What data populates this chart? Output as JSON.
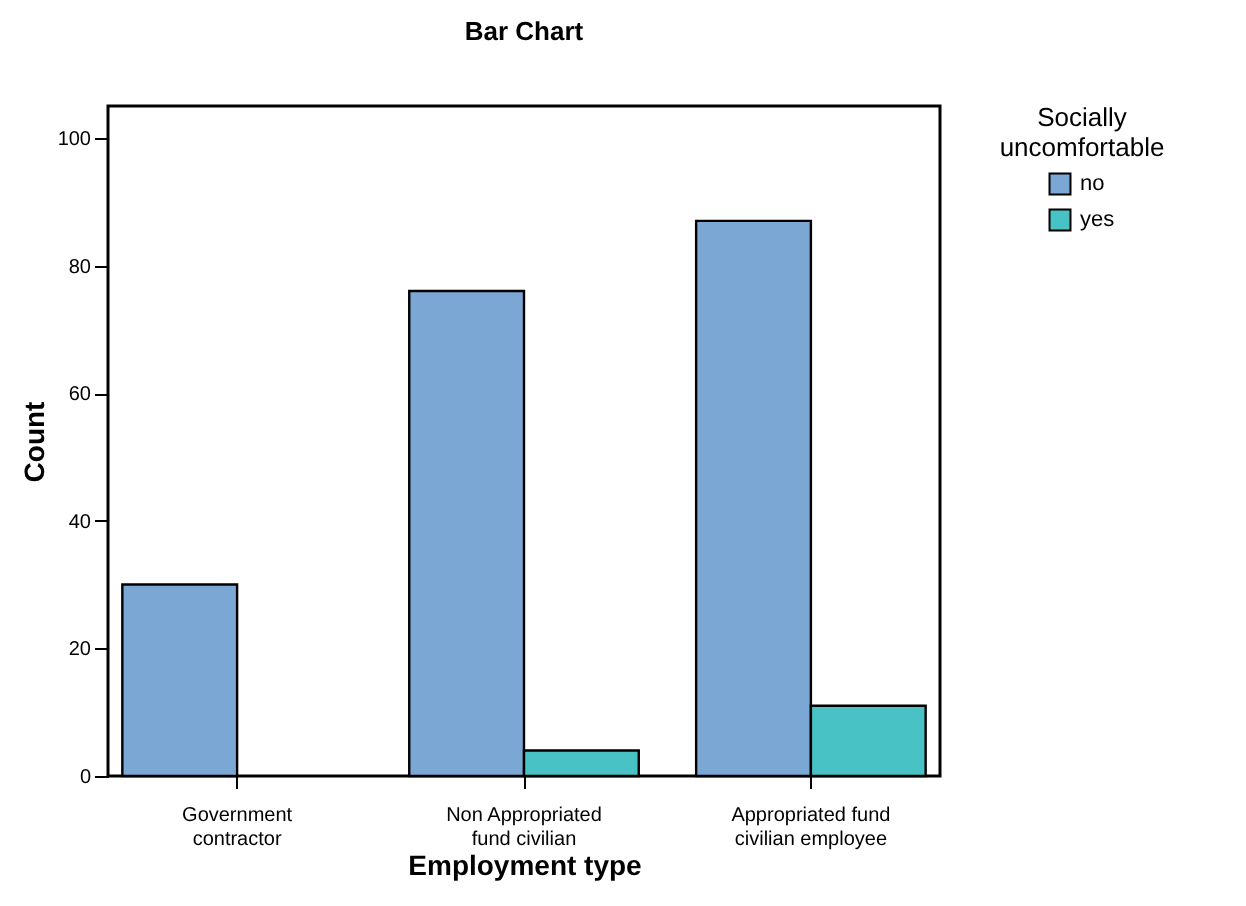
{
  "chart_data": {
    "type": "bar",
    "title": "Bar Chart",
    "xlabel": "Employment type",
    "ylabel": "Count",
    "legend_title": "Socially uncomfortable",
    "legend": "top right",
    "categories": [
      "Government contractor",
      "Non Appropriated fund civilian",
      "Appropriated fund civilian employee"
    ],
    "series": [
      {
        "name": "no",
        "color": "#7ba7d5",
        "values": [
          30,
          76,
          87
        ]
      },
      {
        "name": "yes",
        "color": "#48c2c5",
        "values": [
          0,
          4,
          11
        ]
      }
    ],
    "ylim": [
      0,
      105
    ],
    "yticks": [
      0,
      20,
      40,
      60,
      80,
      100
    ],
    "grid": false
  }
}
